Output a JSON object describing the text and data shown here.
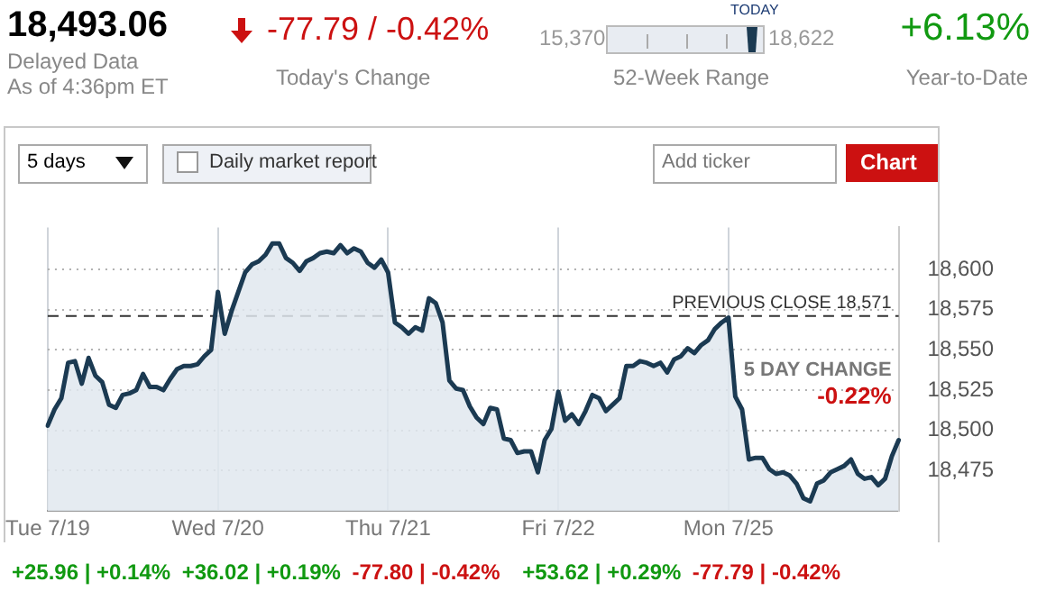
{
  "chart_data": {
    "type": "area",
    "annotations": [
      "18,493.06",
      "Delayed Data",
      "As of 4:36pm ET",
      "-77.79 / -0.42%",
      "Today's Change",
      "15,370",
      "18,622",
      "TODAY",
      "52-Week Range",
      "+6.13%",
      "Year-to-Date",
      "5 days",
      "Daily market report",
      "Add ticker",
      "Chart",
      "+25.96 | +0.14%",
      "+36.02 | +0.19%",
      "-77.80 | -0.42%",
      "+53.62 | +0.29%",
      "-77.79 | -0.42%",
      "5 DAY CHANGE",
      "-0.22%"
    ],
    "categories": [
      "Tue 7/19",
      null,
      null,
      null,
      null,
      null,
      null,
      null,
      null,
      null,
      null,
      null,
      null,
      null,
      null,
      null,
      null,
      null,
      null,
      null,
      null,
      null,
      null,
      null,
      null,
      "Wed 7/20",
      null,
      null,
      null,
      null,
      null,
      null,
      null,
      null,
      null,
      null,
      null,
      null,
      null,
      null,
      null,
      null,
      null,
      null,
      null,
      null,
      null,
      null,
      null,
      null,
      "Thu 7/21",
      null,
      null,
      null,
      null,
      null,
      null,
      null,
      null,
      null,
      null,
      null,
      null,
      null,
      null,
      null,
      null,
      null,
      null,
      null,
      null,
      null,
      null,
      null,
      null,
      "Fri 7/22",
      null,
      null,
      null,
      null,
      null,
      null,
      null,
      null,
      null,
      null,
      null,
      null,
      null,
      null,
      null,
      null,
      null,
      null,
      null,
      null,
      null,
      null,
      null,
      null,
      "Mon 7/25",
      null,
      null,
      null,
      null,
      null,
      null,
      null,
      null,
      null,
      null,
      null,
      null,
      null,
      null,
      null,
      null,
      null,
      null,
      null,
      null,
      null,
      null,
      null,
      null,
      null
    ],
    "ylim": [
      18450,
      18626
    ],
    "yticks": [
      {
        "value": 18475,
        "label": "18,475"
      },
      {
        "value": 18500,
        "label": "18,500"
      },
      {
        "value": 18525,
        "label": "18,525"
      },
      {
        "value": 18550,
        "label": "18,550"
      },
      {
        "value": 18575,
        "label": "18,575"
      },
      {
        "value": 18600,
        "label": "18,600"
      }
    ],
    "grid": true,
    "marker": "none",
    "line_style": "solid",
    "ref_lines": [
      {
        "axis": "y",
        "value": 18571,
        "label": "PREVIOUS CLOSE 18,571",
        "line_style": "dashed",
        "color": "#333333"
      }
    ],
    "series": [
      {
        "color": "#1b3a52",
        "values": [
          18503,
          18513,
          18520,
          18542,
          18543,
          18529,
          18545,
          18534,
          18530,
          18516,
          18514,
          18522,
          18523,
          18525,
          18535,
          18527,
          18527,
          18525,
          18532,
          18538,
          18540,
          18540,
          18541,
          18546,
          18550,
          18586,
          18560,
          18574,
          18586,
          18598,
          18603,
          18605,
          18609,
          18616,
          18616,
          18607,
          18604,
          18599,
          18605,
          18607,
          18610,
          18611,
          18610,
          18615,
          18610,
          18613,
          18611,
          18604,
          18601,
          18606,
          18598,
          18567,
          18564,
          18560,
          18564,
          18562,
          18582,
          18579,
          18567,
          18531,
          18526,
          18525,
          18515,
          18508,
          18504,
          18514,
          18513,
          18495,
          18494,
          18486,
          18487,
          18487,
          18474,
          18494,
          18501,
          18524,
          18506,
          18510,
          18504,
          18512,
          18522,
          18520,
          18512,
          18516,
          18520,
          18540,
          18540,
          18543,
          18542,
          18540,
          18542,
          18536,
          18544,
          18546,
          18551,
          18548,
          18553,
          18556,
          18563,
          18567,
          18570,
          18521,
          18513,
          18482,
          18483,
          18483,
          18476,
          18473,
          18474,
          18472,
          18467,
          18458,
          18456,
          18467,
          18469,
          18474,
          18476,
          18478,
          18482,
          18473,
          18470,
          18471,
          18466,
          18470,
          18484,
          18494
        ]
      }
    ]
  }
}
